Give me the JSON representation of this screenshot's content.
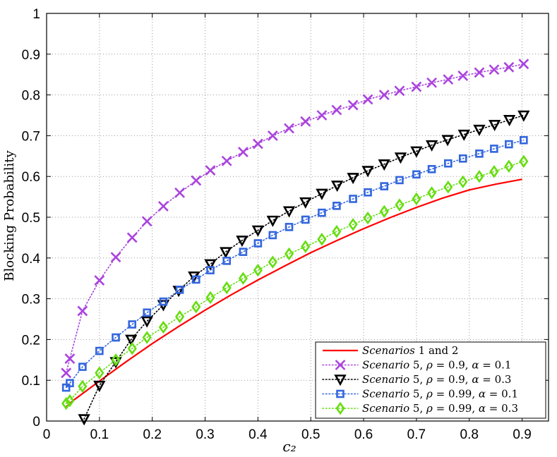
{
  "chart_data": {
    "type": "line",
    "xlabel": "c₂",
    "ylabel": "Blocking Probability",
    "xlim": [
      0,
      0.95
    ],
    "ylim": [
      0,
      1
    ],
    "xticks": [
      "0",
      "0.1",
      "0.2",
      "0.3",
      "0.4",
      "0.5",
      "0.6",
      "0.7",
      "0.8",
      "0.9"
    ],
    "yticks": [
      "0",
      "0.1",
      "0.2",
      "0.3",
      "0.4",
      "0.5",
      "0.6",
      "0.7",
      "0.8",
      "0.9",
      "1"
    ],
    "grid": true,
    "legend_position": "bottom-right",
    "series": [
      {
        "name": "Scenarios 1 and 2",
        "legend_parts": [
          [
            "Scenarios",
            true
          ],
          [
            " 1 and 2",
            false
          ]
        ],
        "color": "#ff0000",
        "style": "solid",
        "marker": "none",
        "x": [
          0.037,
          0.05,
          0.1,
          0.15,
          0.2,
          0.25,
          0.3,
          0.35,
          0.4,
          0.45,
          0.5,
          0.55,
          0.6,
          0.65,
          0.7,
          0.75,
          0.8,
          0.85,
          0.9
        ],
        "values": [
          0.035,
          0.05,
          0.098,
          0.145,
          0.19,
          0.232,
          0.272,
          0.31,
          0.346,
          0.38,
          0.413,
          0.443,
          0.472,
          0.499,
          0.524,
          0.547,
          0.567,
          0.581,
          0.593
        ]
      },
      {
        "name": "Scenario 5, ρ = 0.9, α = 0.1",
        "legend_parts": [
          [
            "Scenario",
            true
          ],
          [
            " 5, ",
            false
          ],
          [
            "ρ",
            true
          ],
          [
            " = 0.9, ",
            false
          ],
          [
            "α",
            true
          ],
          [
            " = 0.1",
            false
          ]
        ],
        "color": "#aa44dd",
        "style": "dotted",
        "marker": "x",
        "x": [
          0.037,
          0.044,
          0.068,
          0.1,
          0.131,
          0.162,
          0.19,
          0.221,
          0.252,
          0.283,
          0.31,
          0.341,
          0.372,
          0.4,
          0.428,
          0.459,
          0.49,
          0.521,
          0.549,
          0.58,
          0.608,
          0.639,
          0.668,
          0.7,
          0.729,
          0.76,
          0.788,
          0.819,
          0.847,
          0.875,
          0.903
        ],
        "values": [
          0.118,
          0.153,
          0.27,
          0.345,
          0.402,
          0.45,
          0.49,
          0.527,
          0.56,
          0.59,
          0.615,
          0.638,
          0.66,
          0.68,
          0.7,
          0.718,
          0.735,
          0.75,
          0.763,
          0.775,
          0.789,
          0.8,
          0.81,
          0.82,
          0.83,
          0.838,
          0.847,
          0.855,
          0.862,
          0.868,
          0.876
        ]
      },
      {
        "name": "Scenario 5, ρ = 0.9, α = 0.3",
        "legend_parts": [
          [
            "Scenario",
            true
          ],
          [
            " 5, ",
            false
          ],
          [
            "ρ",
            true
          ],
          [
            " = 0.9, ",
            false
          ],
          [
            "α",
            true
          ],
          [
            " = 0.3",
            false
          ]
        ],
        "color": "#000000",
        "style": "dotted",
        "marker": "triangle-down",
        "x": [
          0.071,
          0.1,
          0.131,
          0.16,
          0.19,
          0.221,
          0.25,
          0.279,
          0.31,
          0.339,
          0.37,
          0.4,
          0.428,
          0.459,
          0.49,
          0.521,
          0.55,
          0.58,
          0.608,
          0.639,
          0.67,
          0.7,
          0.729,
          0.759,
          0.79,
          0.819,
          0.848,
          0.876,
          0.903
        ],
        "values": [
          0.005,
          0.087,
          0.145,
          0.2,
          0.245,
          0.285,
          0.32,
          0.355,
          0.385,
          0.415,
          0.443,
          0.468,
          0.492,
          0.515,
          0.537,
          0.558,
          0.578,
          0.597,
          0.614,
          0.63,
          0.647,
          0.662,
          0.677,
          0.69,
          0.703,
          0.715,
          0.727,
          0.739,
          0.75
        ]
      },
      {
        "name": "Scenario 5, ρ = 0.99, α = 0.1",
        "legend_parts": [
          [
            "Scenario",
            true
          ],
          [
            " 5, ",
            false
          ],
          [
            "ρ",
            true
          ],
          [
            " = 0.99, ",
            false
          ],
          [
            "α",
            true
          ],
          [
            " = 0.1",
            false
          ]
        ],
        "color": "#3366dd",
        "style": "dotted",
        "marker": "square",
        "x": [
          0.037,
          0.044,
          0.068,
          0.1,
          0.131,
          0.162,
          0.19,
          0.221,
          0.252,
          0.283,
          0.31,
          0.341,
          0.372,
          0.4,
          0.428,
          0.459,
          0.49,
          0.521,
          0.549,
          0.58,
          0.608,
          0.639,
          0.668,
          0.7,
          0.729,
          0.76,
          0.788,
          0.819,
          0.847,
          0.875,
          0.903
        ],
        "values": [
          0.082,
          0.093,
          0.133,
          0.172,
          0.205,
          0.237,
          0.266,
          0.293,
          0.322,
          0.347,
          0.37,
          0.393,
          0.415,
          0.436,
          0.456,
          0.476,
          0.494,
          0.511,
          0.528,
          0.545,
          0.561,
          0.576,
          0.591,
          0.605,
          0.618,
          0.632,
          0.644,
          0.656,
          0.668,
          0.679,
          0.689
        ]
      },
      {
        "name": "Scenario 5, ρ = 0.99, α = 0.3",
        "legend_parts": [
          [
            "Scenario",
            true
          ],
          [
            " 5, ",
            false
          ],
          [
            "ρ",
            true
          ],
          [
            " = 0.99, ",
            false
          ],
          [
            "α",
            true
          ],
          [
            " = 0.3",
            false
          ]
        ],
        "color": "#66dd11",
        "style": "dotted",
        "marker": "diamond",
        "x": [
          0.037,
          0.044,
          0.068,
          0.1,
          0.131,
          0.162,
          0.19,
          0.221,
          0.252,
          0.283,
          0.31,
          0.341,
          0.372,
          0.4,
          0.428,
          0.459,
          0.49,
          0.521,
          0.549,
          0.58,
          0.608,
          0.639,
          0.668,
          0.7,
          0.729,
          0.76,
          0.788,
          0.819,
          0.847,
          0.875,
          0.903
        ],
        "values": [
          0.043,
          0.05,
          0.085,
          0.118,
          0.15,
          0.178,
          0.205,
          0.23,
          0.256,
          0.28,
          0.303,
          0.327,
          0.35,
          0.37,
          0.39,
          0.41,
          0.428,
          0.446,
          0.465,
          0.482,
          0.498,
          0.514,
          0.53,
          0.545,
          0.56,
          0.574,
          0.587,
          0.6,
          0.612,
          0.625,
          0.637
        ]
      }
    ]
  }
}
